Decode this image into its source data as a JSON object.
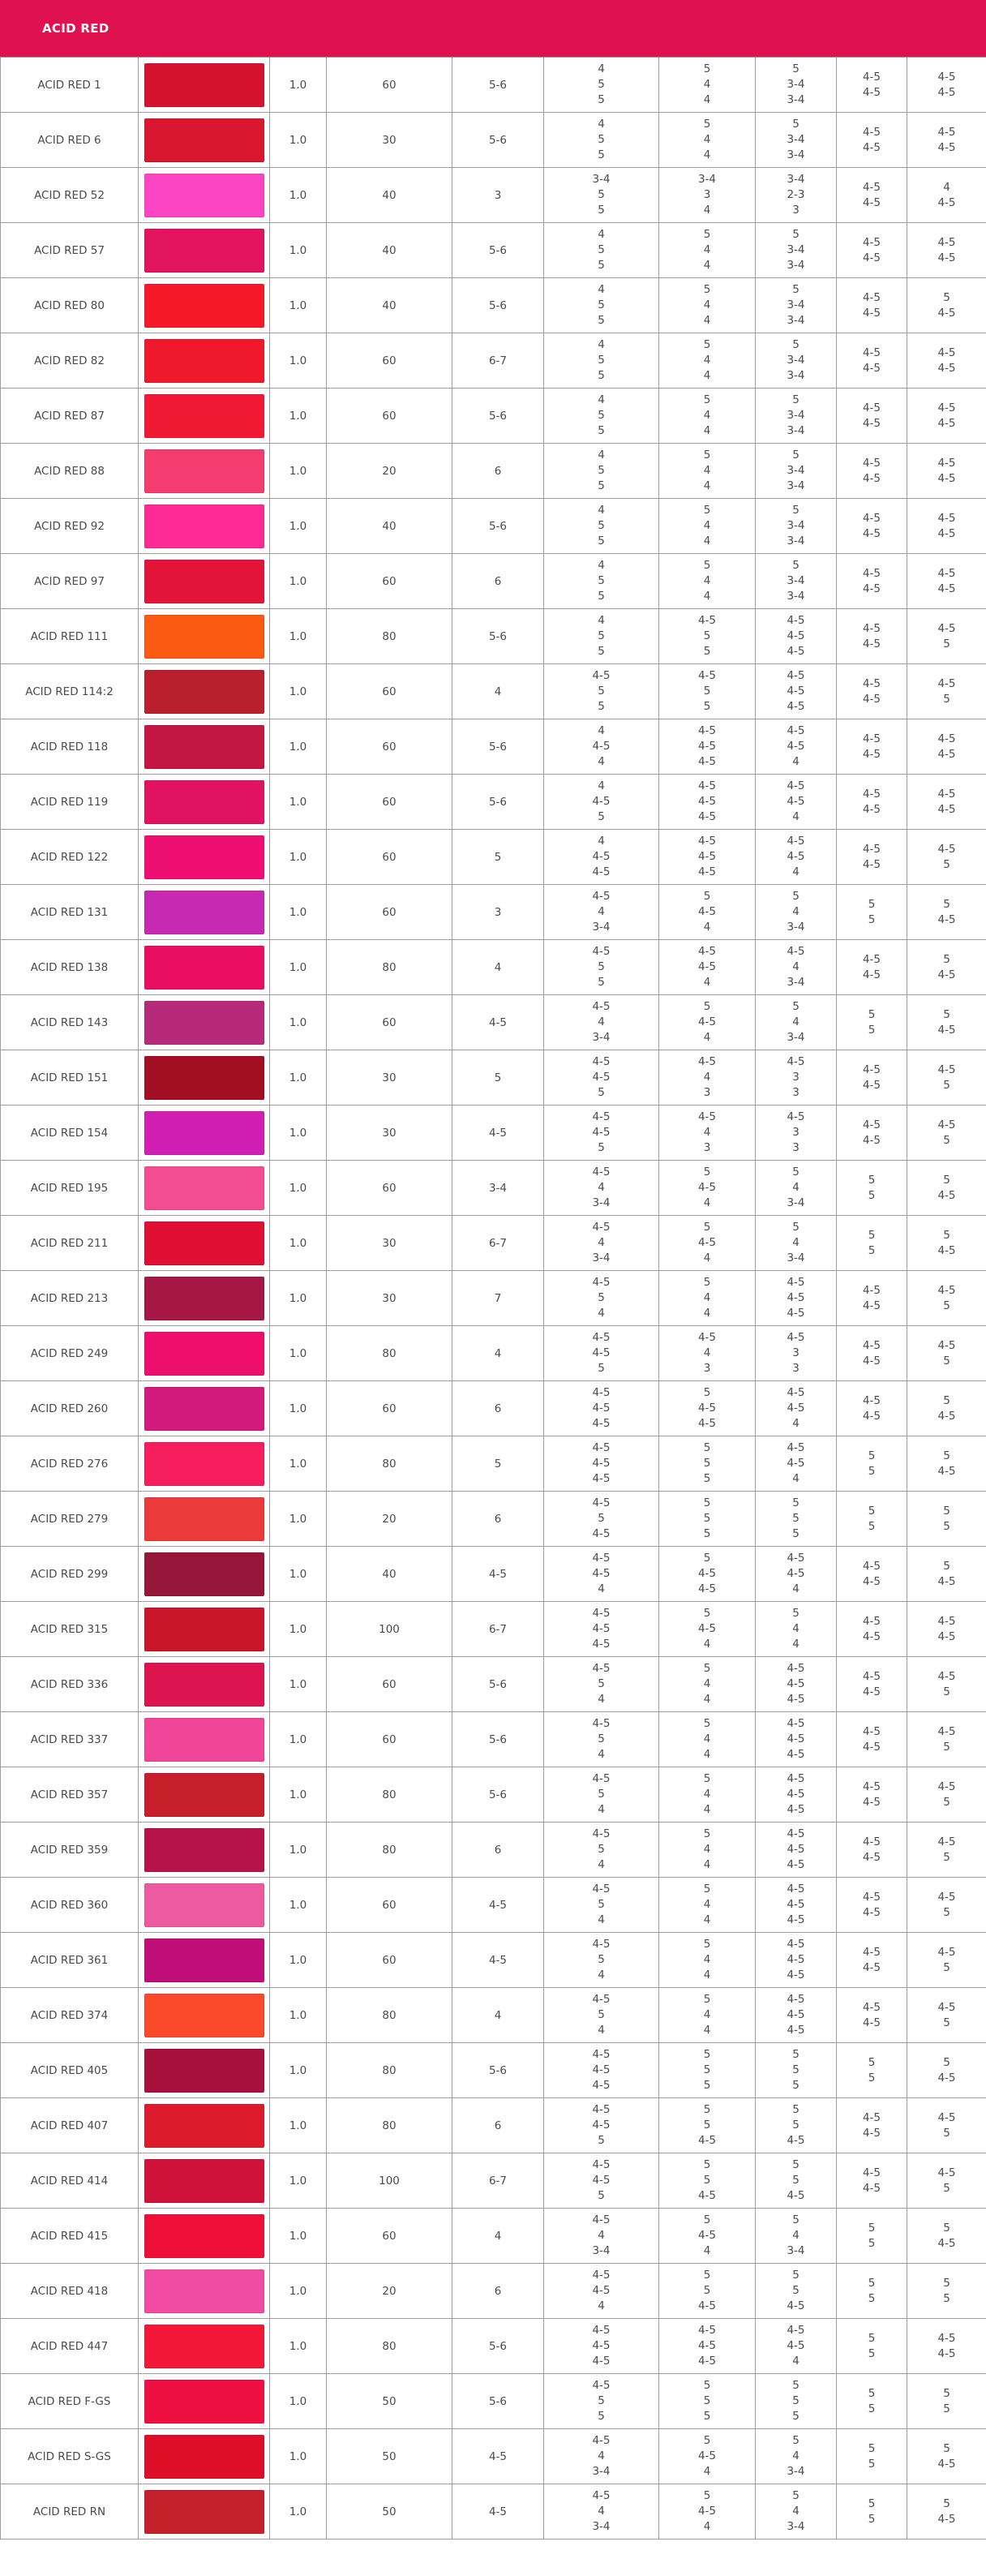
{
  "header": {
    "title": "ACID RED",
    "color": "#e0114f"
  },
  "rows": [
    {
      "name": "ACID RED 1",
      "color": "#d4142f",
      "a": "1.0",
      "b": "60",
      "c": "5-6",
      "d": [
        "4",
        "5",
        "5"
      ],
      "e": [
        "5",
        "4",
        "4"
      ],
      "f": [
        "5",
        "3-4",
        "3-4"
      ],
      "g": [
        "4-5",
        "4-5"
      ],
      "h": [
        "4-5",
        "4-5"
      ]
    },
    {
      "name": "ACID RED 6",
      "color": "#d8182e",
      "a": "1.0",
      "b": "30",
      "c": "5-6",
      "d": [
        "4",
        "5",
        "5"
      ],
      "e": [
        "5",
        "4",
        "4"
      ],
      "f": [
        "5",
        "3-4",
        "3-4"
      ],
      "g": [
        "4-5",
        "4-5"
      ],
      "h": [
        "4-5",
        "4-5"
      ]
    },
    {
      "name": "ACID RED 52",
      "color": "#fb45c2",
      "a": "1.0",
      "b": "40",
      "c": "3",
      "d": [
        "3-4",
        "5",
        "5"
      ],
      "e": [
        "3-4",
        "3",
        "4"
      ],
      "f": [
        "3-4",
        "2-3",
        "3"
      ],
      "g": [
        "4-5",
        "4-5"
      ],
      "h": [
        "4",
        "4-5"
      ]
    },
    {
      "name": "ACID RED 57",
      "color": "#e2145e",
      "a": "1.0",
      "b": "40",
      "c": "5-6",
      "d": [
        "4",
        "5",
        "5"
      ],
      "e": [
        "5",
        "4",
        "4"
      ],
      "f": [
        "5",
        "3-4",
        "3-4"
      ],
      "g": [
        "4-5",
        "4-5"
      ],
      "h": [
        "4-5",
        "4-5"
      ]
    },
    {
      "name": "ACID RED 80",
      "color": "#f5192a",
      "a": "1.0",
      "b": "40",
      "c": "5-6",
      "d": [
        "4",
        "5",
        "5"
      ],
      "e": [
        "5",
        "4",
        "4"
      ],
      "f": [
        "5",
        "3-4",
        "3-4"
      ],
      "g": [
        "4-5",
        "4-5"
      ],
      "h": [
        "5",
        "4-5"
      ]
    },
    {
      "name": "ACID RED 82",
      "color": "#ee1a2c",
      "a": "1.0",
      "b": "60",
      "c": "6-7",
      "d": [
        "4",
        "5",
        "5"
      ],
      "e": [
        "5",
        "4",
        "4"
      ],
      "f": [
        "5",
        "3-4",
        "3-4"
      ],
      "g": [
        "4-5",
        "4-5"
      ],
      "h": [
        "4-5",
        "4-5"
      ]
    },
    {
      "name": "ACID RED 87",
      "color": "#f01a34",
      "a": "1.0",
      "b": "60",
      "c": "5-6",
      "d": [
        "4",
        "5",
        "5"
      ],
      "e": [
        "5",
        "4",
        "4"
      ],
      "f": [
        "5",
        "3-4",
        "3-4"
      ],
      "g": [
        "4-5",
        "4-5"
      ],
      "h": [
        "4-5",
        "4-5"
      ]
    },
    {
      "name": "ACID RED 88",
      "color": "#f23d6e",
      "a": "1.0",
      "b": "20",
      "c": "6",
      "d": [
        "4",
        "5",
        "5"
      ],
      "e": [
        "5",
        "4",
        "4"
      ],
      "f": [
        "5",
        "3-4",
        "3-4"
      ],
      "g": [
        "4-5",
        "4-5"
      ],
      "h": [
        "4-5",
        "4-5"
      ]
    },
    {
      "name": "ACID RED 92",
      "color": "#fd2b93",
      "a": "1.0",
      "b": "40",
      "c": "5-6",
      "d": [
        "4",
        "5",
        "5"
      ],
      "e": [
        "5",
        "4",
        "4"
      ],
      "f": [
        "5",
        "3-4",
        "3-4"
      ],
      "g": [
        "4-5",
        "4-5"
      ],
      "h": [
        "4-5",
        "4-5"
      ]
    },
    {
      "name": "ACID RED 97",
      "color": "#e3143a",
      "a": "1.0",
      "b": "60",
      "c": "6",
      "d": [
        "4",
        "5",
        "5"
      ],
      "e": [
        "5",
        "4",
        "4"
      ],
      "f": [
        "5",
        "3-4",
        "3-4"
      ],
      "g": [
        "4-5",
        "4-5"
      ],
      "h": [
        "4-5",
        "4-5"
      ]
    },
    {
      "name": "ACID RED 111",
      "color": "#fb5a12",
      "a": "1.0",
      "b": "80",
      "c": "5-6",
      "d": [
        "4",
        "5",
        "5"
      ],
      "e": [
        "4-5",
        "5",
        "5"
      ],
      "f": [
        "4-5",
        "4-5",
        "4-5"
      ],
      "g": [
        "4-5",
        "4-5"
      ],
      "h": [
        "4-5",
        "5"
      ]
    },
    {
      "name": "ACID RED 114:2",
      "color": "#b9202c",
      "a": "1.0",
      "b": "60",
      "c": "4",
      "d": [
        "4-5",
        "5",
        "5"
      ],
      "e": [
        "4-5",
        "5",
        "5"
      ],
      "f": [
        "4-5",
        "4-5",
        "4-5"
      ],
      "g": [
        "4-5",
        "4-5"
      ],
      "h": [
        "4-5",
        "5"
      ]
    },
    {
      "name": "ACID RED 118",
      "color": "#c41642",
      "a": "1.0",
      "b": "60",
      "c": "5-6",
      "d": [
        "4",
        "4-5",
        "4"
      ],
      "e": [
        "4-5",
        "4-5",
        "4-5"
      ],
      "f": [
        "4-5",
        "4-5",
        "4"
      ],
      "g": [
        "4-5",
        "4-5"
      ],
      "h": [
        "4-5",
        "4-5"
      ]
    },
    {
      "name": "ACID RED 119",
      "color": "#e01262",
      "a": "1.0",
      "b": "60",
      "c": "5-6",
      "d": [
        "4",
        "4-5",
        "5"
      ],
      "e": [
        "4-5",
        "4-5",
        "4-5"
      ],
      "f": [
        "4-5",
        "4-5",
        "4"
      ],
      "g": [
        "4-5",
        "4-5"
      ],
      "h": [
        "4-5",
        "4-5"
      ]
    },
    {
      "name": "ACID RED 122",
      "color": "#ef0f73",
      "a": "1.0",
      "b": "60",
      "c": "5",
      "d": [
        "4",
        "4-5",
        "4-5"
      ],
      "e": [
        "4-5",
        "4-5",
        "4-5"
      ],
      "f": [
        "4-5",
        "4-5",
        "4"
      ],
      "g": [
        "4-5",
        "4-5"
      ],
      "h": [
        "4-5",
        "5"
      ]
    },
    {
      "name": "ACID RED 131",
      "color": "#c62ab3",
      "a": "1.0",
      "b": "60",
      "c": "3",
      "d": [
        "4-5",
        "4",
        "3-4"
      ],
      "e": [
        "5",
        "4-5",
        "4"
      ],
      "f": [
        "5",
        "4",
        "3-4"
      ],
      "g": [
        "5",
        "5"
      ],
      "h": [
        "5",
        "4-5"
      ]
    },
    {
      "name": "ACID RED 138",
      "color": "#ea0e63",
      "a": "1.0",
      "b": "80",
      "c": "4",
      "d": [
        "4-5",
        "5",
        "5"
      ],
      "e": [
        "4-5",
        "4-5",
        "4"
      ],
      "f": [
        "4-5",
        "4",
        "3-4"
      ],
      "g": [
        "4-5",
        "4-5"
      ],
      "h": [
        "5",
        "4-5"
      ]
    },
    {
      "name": "ACID RED 143",
      "color": "#b72a7a",
      "a": "1.0",
      "b": "60",
      "c": "4-5",
      "d": [
        "4-5",
        "4",
        "3-4"
      ],
      "e": [
        "5",
        "4-5",
        "4"
      ],
      "f": [
        "5",
        "4",
        "3-4"
      ],
      "g": [
        "5",
        "5"
      ],
      "h": [
        "5",
        "4-5"
      ]
    },
    {
      "name": "ACID RED 151",
      "color": "#a20f22",
      "a": "1.0",
      "b": "30",
      "c": "5",
      "d": [
        "4-5",
        "4-5",
        "5"
      ],
      "e": [
        "4-5",
        "4",
        "3"
      ],
      "f": [
        "4-5",
        "3",
        "3"
      ],
      "g": [
        "4-5",
        "4-5"
      ],
      "h": [
        "4-5",
        "5"
      ]
    },
    {
      "name": "ACID RED 154",
      "color": "#d21fb3",
      "a": "1.0",
      "b": "30",
      "c": "4-5",
      "d": [
        "4-5",
        "4-5",
        "5"
      ],
      "e": [
        "4-5",
        "4",
        "3"
      ],
      "f": [
        "4-5",
        "3",
        "3"
      ],
      "g": [
        "4-5",
        "4-5"
      ],
      "h": [
        "4-5",
        "5"
      ]
    },
    {
      "name": "ACID RED 195",
      "color": "#f24d93",
      "a": "1.0",
      "b": "60",
      "c": "3-4",
      "d": [
        "4-5",
        "4",
        "3-4"
      ],
      "e": [
        "5",
        "4-5",
        "4"
      ],
      "f": [
        "5",
        "4",
        "3-4"
      ],
      "g": [
        "5",
        "5"
      ],
      "h": [
        "5",
        "4-5"
      ]
    },
    {
      "name": "ACID RED 211",
      "color": "#de0f33",
      "a": "1.0",
      "b": "30",
      "c": "6-7",
      "d": [
        "4-5",
        "4",
        "3-4"
      ],
      "e": [
        "5",
        "4-5",
        "4"
      ],
      "f": [
        "5",
        "4",
        "3-4"
      ],
      "g": [
        "5",
        "5"
      ],
      "h": [
        "5",
        "4-5"
      ]
    },
    {
      "name": "ACID RED 213",
      "color": "#a51846",
      "a": "1.0",
      "b": "30",
      "c": "7",
      "d": [
        "4-5",
        "5",
        "4"
      ],
      "e": [
        "5",
        "4",
        "4"
      ],
      "f": [
        "4-5",
        "4-5",
        "4-5"
      ],
      "g": [
        "4-5",
        "4-5"
      ],
      "h": [
        "4-5",
        "5"
      ]
    },
    {
      "name": "ACID RED 249",
      "color": "#ed0f6b",
      "a": "1.0",
      "b": "80",
      "c": "4",
      "d": [
        "4-5",
        "4-5",
        "5"
      ],
      "e": [
        "4-5",
        "4",
        "3"
      ],
      "f": [
        "4-5",
        "3",
        "3"
      ],
      "g": [
        "4-5",
        "4-5"
      ],
      "h": [
        "4-5",
        "5"
      ]
    },
    {
      "name": "ACID RED 260",
      "color": "#d21a7c",
      "a": "1.0",
      "b": "60",
      "c": "6",
      "d": [
        "4-5",
        "4-5",
        "4-5"
      ],
      "e": [
        "5",
        "4-5",
        "4-5"
      ],
      "f": [
        "4-5",
        "4-5",
        "4"
      ],
      "g": [
        "4-5",
        "4-5"
      ],
      "h": [
        "5",
        "4-5"
      ]
    },
    {
      "name": "ACID RED 276",
      "color": "#f61e5d",
      "a": "1.0",
      "b": "80",
      "c": "5",
      "d": [
        "4-5",
        "4-5",
        "4-5"
      ],
      "e": [
        "5",
        "5",
        "5"
      ],
      "f": [
        "4-5",
        "4-5",
        "4"
      ],
      "g": [
        "5",
        "5"
      ],
      "h": [
        "5",
        "4-5"
      ]
    },
    {
      "name": "ACID RED 279",
      "color": "#ea3a3a",
      "a": "1.0",
      "b": "20",
      "c": "6",
      "d": [
        "4-5",
        "5",
        "4-5"
      ],
      "e": [
        "5",
        "5",
        "5"
      ],
      "f": [
        "5",
        "5",
        "5"
      ],
      "g": [
        "5",
        "5"
      ],
      "h": [
        "5",
        "5"
      ]
    },
    {
      "name": "ACID RED 299",
      "color": "#951638",
      "a": "1.0",
      "b": "40",
      "c": "4-5",
      "d": [
        "4-5",
        "4-5",
        "4"
      ],
      "e": [
        "5",
        "4-5",
        "4-5"
      ],
      "f": [
        "4-5",
        "4-5",
        "4"
      ],
      "g": [
        "4-5",
        "4-5"
      ],
      "h": [
        "5",
        "4-5"
      ]
    },
    {
      "name": "ACID RED 315",
      "color": "#c81628",
      "a": "1.0",
      "b": "100",
      "c": "6-7",
      "d": [
        "4-5",
        "4-5",
        "4-5"
      ],
      "e": [
        "5",
        "4-5",
        "4"
      ],
      "f": [
        "5",
        "4",
        "4"
      ],
      "g": [
        "4-5",
        "4-5"
      ],
      "h": [
        "4-5",
        "4-5"
      ]
    },
    {
      "name": "ACID RED 336",
      "color": "#dc1450",
      "a": "1.0",
      "b": "60",
      "c": "5-6",
      "d": [
        "4-5",
        "5",
        "4"
      ],
      "e": [
        "5",
        "4",
        "4"
      ],
      "f": [
        "4-5",
        "4-5",
        "4-5"
      ],
      "g": [
        "4-5",
        "4-5"
      ],
      "h": [
        "4-5",
        "5"
      ]
    },
    {
      "name": "ACID RED 337",
      "color": "#f0469a",
      "a": "1.0",
      "b": "60",
      "c": "5-6",
      "d": [
        "4-5",
        "5",
        "4"
      ],
      "e": [
        "5",
        "4",
        "4"
      ],
      "f": [
        "4-5",
        "4-5",
        "4-5"
      ],
      "g": [
        "4-5",
        "4-5"
      ],
      "h": [
        "4-5",
        "5"
      ]
    },
    {
      "name": "ACID RED 357",
      "color": "#c61e2a",
      "a": "1.0",
      "b": "80",
      "c": "5-6",
      "d": [
        "4-5",
        "5",
        "4"
      ],
      "e": [
        "5",
        "4",
        "4"
      ],
      "f": [
        "4-5",
        "4-5",
        "4-5"
      ],
      "g": [
        "4-5",
        "4-5"
      ],
      "h": [
        "4-5",
        "5"
      ]
    },
    {
      "name": "ACID RED 359",
      "color": "#b5134a",
      "a": "1.0",
      "b": "80",
      "c": "6",
      "d": [
        "4-5",
        "5",
        "4"
      ],
      "e": [
        "5",
        "4",
        "4"
      ],
      "f": [
        "4-5",
        "4-5",
        "4-5"
      ],
      "g": [
        "4-5",
        "4-5"
      ],
      "h": [
        "4-5",
        "5"
      ]
    },
    {
      "name": "ACID RED 360",
      "color": "#ee5aa0",
      "a": "1.0",
      "b": "60",
      "c": "4-5",
      "d": [
        "4-5",
        "5",
        "4"
      ],
      "e": [
        "5",
        "4",
        "4"
      ],
      "f": [
        "4-5",
        "4-5",
        "4-5"
      ],
      "g": [
        "4-5",
        "4-5"
      ],
      "h": [
        "4-5",
        "5"
      ]
    },
    {
      "name": "ACID RED 361",
      "color": "#c10f7a",
      "a": "1.0",
      "b": "60",
      "c": "4-5",
      "d": [
        "4-5",
        "5",
        "4"
      ],
      "e": [
        "5",
        "4",
        "4"
      ],
      "f": [
        "4-5",
        "4-5",
        "4-5"
      ],
      "g": [
        "4-5",
        "4-5"
      ],
      "h": [
        "4-5",
        "5"
      ]
    },
    {
      "name": "ACID RED 374",
      "color": "#fa4a2a",
      "a": "1.0",
      "b": "80",
      "c": "4",
      "d": [
        "4-5",
        "5",
        "4"
      ],
      "e": [
        "5",
        "4",
        "4"
      ],
      "f": [
        "4-5",
        "4-5",
        "4-5"
      ],
      "g": [
        "4-5",
        "4-5"
      ],
      "h": [
        "4-5",
        "5"
      ]
    },
    {
      "name": "ACID RED 405",
      "color": "#a8113e",
      "a": "1.0",
      "b": "80",
      "c": "5-6",
      "d": [
        "4-5",
        "4-5",
        "4-5"
      ],
      "e": [
        "5",
        "5",
        "5"
      ],
      "f": [
        "5",
        "5",
        "5"
      ],
      "g": [
        "5",
        "5"
      ],
      "h": [
        "5",
        "4-5"
      ]
    },
    {
      "name": "ACID RED 407",
      "color": "#dc1c2c",
      "a": "1.0",
      "b": "80",
      "c": "6",
      "d": [
        "4-5",
        "4-5",
        "5"
      ],
      "e": [
        "5",
        "5",
        "4-5"
      ],
      "f": [
        "5",
        "5",
        "4-5"
      ],
      "g": [
        "4-5",
        "4-5"
      ],
      "h": [
        "4-5",
        "5"
      ]
    },
    {
      "name": "ACID RED 414",
      "color": "#cf1338",
      "a": "1.0",
      "b": "100",
      "c": "6-7",
      "d": [
        "4-5",
        "4-5",
        "5"
      ],
      "e": [
        "5",
        "5",
        "4-5"
      ],
      "f": [
        "5",
        "5",
        "4-5"
      ],
      "g": [
        "4-5",
        "4-5"
      ],
      "h": [
        "4-5",
        "5"
      ]
    },
    {
      "name": "ACID RED 415",
      "color": "#ee1039",
      "a": "1.0",
      "b": "60",
      "c": "4",
      "d": [
        "4-5",
        "4",
        "3-4"
      ],
      "e": [
        "5",
        "4-5",
        "4"
      ],
      "f": [
        "5",
        "4",
        "3-4"
      ],
      "g": [
        "5",
        "5"
      ],
      "h": [
        "5",
        "4-5"
      ]
    },
    {
      "name": "ACID RED 418",
      "color": "#f24ba4",
      "a": "1.0",
      "b": "20",
      "c": "6",
      "d": [
        "4-5",
        "4-5",
        "4"
      ],
      "e": [
        "5",
        "5",
        "4-5"
      ],
      "f": [
        "5",
        "5",
        "4-5"
      ],
      "g": [
        "5",
        "5"
      ],
      "h": [
        "5",
        "5"
      ]
    },
    {
      "name": "ACID RED 447",
      "color": "#f21837",
      "a": "1.0",
      "b": "80",
      "c": "5-6",
      "d": [
        "4-5",
        "4-5",
        "4-5"
      ],
      "e": [
        "4-5",
        "4-5",
        "4-5"
      ],
      "f": [
        "4-5",
        "4-5",
        "4"
      ],
      "g": [
        "5",
        "5"
      ],
      "h": [
        "4-5",
        "4-5"
      ]
    },
    {
      "name": "ACID RED F-GS",
      "color": "#ee1041",
      "a": "1.0",
      "b": "50",
      "c": "5-6",
      "d": [
        "4-5",
        "5",
        "5"
      ],
      "e": [
        "5",
        "5",
        "5"
      ],
      "f": [
        "5",
        "5",
        "5"
      ],
      "g": [
        "5",
        "5"
      ],
      "h": [
        "5",
        "5"
      ]
    },
    {
      "name": "ACID RED S-GS",
      "color": "#de1029",
      "a": "1.0",
      "b": "50",
      "c": "4-5",
      "d": [
        "4-5",
        "4",
        "3-4"
      ],
      "e": [
        "5",
        "4-5",
        "4"
      ],
      "f": [
        "5",
        "4",
        "3-4"
      ],
      "g": [
        "5",
        "5"
      ],
      "h": [
        "5",
        "4-5"
      ]
    },
    {
      "name": "ACID RED RN",
      "color": "#c4212d",
      "a": "1.0",
      "b": "50",
      "c": "4-5",
      "d": [
        "4-5",
        "4",
        "3-4"
      ],
      "e": [
        "5",
        "4-5",
        "4"
      ],
      "f": [
        "5",
        "4",
        "3-4"
      ],
      "g": [
        "5",
        "5"
      ],
      "h": [
        "5",
        "4-5"
      ]
    }
  ]
}
